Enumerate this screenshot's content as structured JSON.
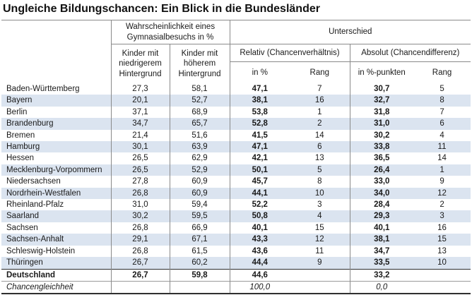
{
  "title": "Ungleiche Bildungschancen: Ein Blick in die Bundesländer",
  "colors": {
    "stripe": "#dbe4f0",
    "line_heavy": "#2f2f2f",
    "line_light": "#8a8a8a",
    "text": "#1a1a1a"
  },
  "chart_data": {
    "type": "table",
    "title": "Ungleiche Bildungschancen: Ein Blick in die Bundesländer",
    "header": {
      "groups": {
        "probability": "Wahrscheinlichkeit eines Gymnasialbesuchs in %",
        "difference": "Unterschied"
      },
      "sub": {
        "low": "Kinder mit niedrigerem Hintergrund",
        "high": "Kinder mit höherem Hintergrund",
        "relative": "Relativ (Chancenverhältnis)",
        "absolute": "Absolut (Chancendifferenz)"
      },
      "leaf": {
        "rel_value": "in %",
        "rel_rank": "Rang",
        "abs_value": "in %-punkten",
        "abs_rank": "Rang"
      }
    },
    "rows": [
      {
        "land": "Baden-Württemberg",
        "low": "27,3",
        "high": "58,1",
        "rel": "47,1",
        "rel_rang": "7",
        "abs": "30,7",
        "abs_rang": "5"
      },
      {
        "land": "Bayern",
        "low": "20,1",
        "high": "52,7",
        "rel": "38,1",
        "rel_rang": "16",
        "abs": "32,7",
        "abs_rang": "8"
      },
      {
        "land": "Berlin",
        "low": "37,1",
        "high": "68,9",
        "rel": "53,8",
        "rel_rang": "1",
        "abs": "31,8",
        "abs_rang": "7"
      },
      {
        "land": "Brandenburg",
        "low": "34,7",
        "high": "65,7",
        "rel": "52,8",
        "rel_rang": "2",
        "abs": "31,0",
        "abs_rang": "6"
      },
      {
        "land": "Bremen",
        "low": "21,4",
        "high": "51,6",
        "rel": "41,5",
        "rel_rang": "14",
        "abs": "30,2",
        "abs_rang": "4"
      },
      {
        "land": "Hamburg",
        "low": "30,1",
        "high": "63,9",
        "rel": "47,1",
        "rel_rang": "6",
        "abs": "33,8",
        "abs_rang": "11"
      },
      {
        "land": "Hessen",
        "low": "26,5",
        "high": "62,9",
        "rel": "42,1",
        "rel_rang": "13",
        "abs": "36,5",
        "abs_rang": "14"
      },
      {
        "land": "Mecklenburg-Vorpommern",
        "low": "26,5",
        "high": "52,9",
        "rel": "50,1",
        "rel_rang": "5",
        "abs": "26,4",
        "abs_rang": "1"
      },
      {
        "land": "Niedersachsen",
        "low": "27,8",
        "high": "60,9",
        "rel": "45,7",
        "rel_rang": "8",
        "abs": "33,0",
        "abs_rang": "9"
      },
      {
        "land": "Nordrhein-Westfalen",
        "low": "26,8",
        "high": "60,9",
        "rel": "44,1",
        "rel_rang": "10",
        "abs": "34,0",
        "abs_rang": "12"
      },
      {
        "land": "Rheinland-Pfalz",
        "low": "31,0",
        "high": "59,4",
        "rel": "52,2",
        "rel_rang": "3",
        "abs": "28,4",
        "abs_rang": "2"
      },
      {
        "land": "Saarland",
        "low": "30,2",
        "high": "59,5",
        "rel": "50,8",
        "rel_rang": "4",
        "abs": "29,3",
        "abs_rang": "3"
      },
      {
        "land": "Sachsen",
        "low": "26,8",
        "high": "66,9",
        "rel": "40,1",
        "rel_rang": "15",
        "abs": "40,1",
        "abs_rang": "16"
      },
      {
        "land": "Sachsen-Anhalt",
        "low": "29,1",
        "high": "67,1",
        "rel": "43,3",
        "rel_rang": "12",
        "abs": "38,1",
        "abs_rang": "15"
      },
      {
        "land": "Schleswig-Holstein",
        "low": "26,8",
        "high": "61,5",
        "rel": "43,6",
        "rel_rang": "11",
        "abs": "34,7",
        "abs_rang": "13"
      },
      {
        "land": "Thüringen",
        "low": "26,7",
        "high": "60,2",
        "rel": "44,4",
        "rel_rang": "9",
        "abs": "33,5",
        "abs_rang": "10"
      },
      {
        "land": "Deutschland",
        "low": "26,7",
        "high": "59,8",
        "rel": "44,6",
        "rel_rang": "",
        "abs": "33,2",
        "abs_rang": "",
        "emphasis": "bold"
      },
      {
        "land": "Chancengleichheit",
        "low": "",
        "high": "",
        "rel": "100,0",
        "rel_rang": "",
        "abs": "0,0",
        "abs_rang": "",
        "emphasis": "italic"
      }
    ]
  }
}
